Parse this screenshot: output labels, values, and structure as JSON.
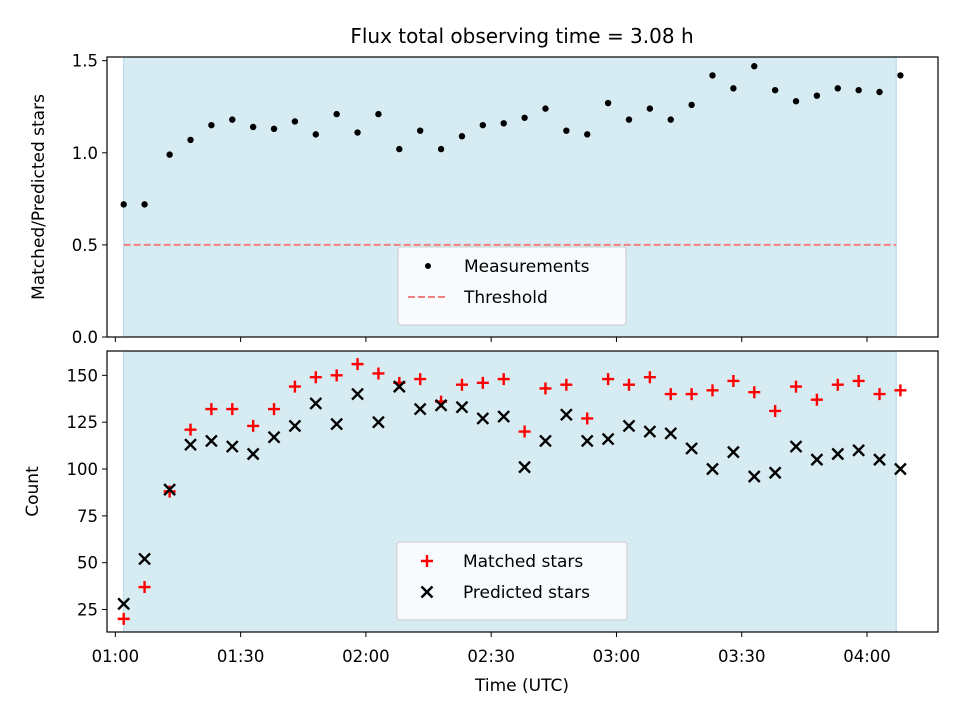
{
  "chart_data": [
    {
      "type": "scatter",
      "title": "Flux total observing time = 3.08 h",
      "xlabel": "",
      "ylabel": "Matched/Predicted stars",
      "xlim": [
        "00:58",
        "04:17"
      ],
      "ylim": [
        0,
        1.52
      ],
      "yticks": [
        "0.0",
        "0.5",
        "1.0",
        "1.5"
      ],
      "shaded_interval": [
        "01:02",
        "04:07"
      ],
      "shade_color": "#add8e6",
      "legend_position": "lower center",
      "series": [
        {
          "name": "Measurements",
          "marker": "dot",
          "color": "#000000",
          "x": [
            "01:02",
            "01:07",
            "01:13",
            "01:18",
            "01:23",
            "01:28",
            "01:33",
            "01:38",
            "01:43",
            "01:48",
            "01:53",
            "01:58",
            "02:03",
            "02:08",
            "02:13",
            "02:18",
            "02:23",
            "02:28",
            "02:33",
            "02:38",
            "02:43",
            "02:48",
            "02:53",
            "02:58",
            "03:03",
            "03:08",
            "03:13",
            "03:18",
            "03:23",
            "03:28",
            "03:33",
            "03:38",
            "03:43",
            "03:48",
            "03:53",
            "03:58",
            "04:03",
            "04:08"
          ],
          "y": [
            0.72,
            0.72,
            0.99,
            1.07,
            1.15,
            1.18,
            1.14,
            1.13,
            1.17,
            1.1,
            1.21,
            1.11,
            1.21,
            1.02,
            1.12,
            1.02,
            1.09,
            1.15,
            1.16,
            1.19,
            1.24,
            1.12,
            1.1,
            1.27,
            1.18,
            1.24,
            1.18,
            1.26,
            1.42,
            1.35,
            1.47,
            1.34,
            1.28,
            1.31,
            1.35,
            1.34,
            1.33,
            1.42
          ]
        }
      ],
      "threshold": {
        "name": "Threshold",
        "value": 0.5,
        "color": "#f08080",
        "style": "dashed"
      }
    },
    {
      "type": "scatter",
      "title": "",
      "xlabel": "Time (UTC)",
      "ylabel": "Count",
      "xlim": [
        "00:58",
        "04:17"
      ],
      "ylim": [
        13,
        163
      ],
      "yticks": [
        "25",
        "50",
        "75",
        "100",
        "125",
        "150"
      ],
      "xticks": [
        "01:00",
        "01:30",
        "02:00",
        "02:30",
        "03:00",
        "03:30",
        "04:00"
      ],
      "shaded_interval": [
        "01:02",
        "04:07"
      ],
      "shade_color": "#add8e6",
      "legend_position": "lower center",
      "series": [
        {
          "name": "Matched stars",
          "marker": "plus",
          "color": "#ff0000",
          "x": [
            "01:02",
            "01:07",
            "01:13",
            "01:18",
            "01:23",
            "01:28",
            "01:33",
            "01:38",
            "01:43",
            "01:48",
            "01:53",
            "01:58",
            "02:03",
            "02:08",
            "02:13",
            "02:18",
            "02:23",
            "02:28",
            "02:33",
            "02:38",
            "02:43",
            "02:48",
            "02:53",
            "02:58",
            "03:03",
            "03:08",
            "03:13",
            "03:18",
            "03:23",
            "03:28",
            "03:33",
            "03:38",
            "03:43",
            "03:48",
            "03:53",
            "03:58",
            "04:03",
            "04:08"
          ],
          "y": [
            20,
            37,
            88,
            121,
            132,
            132,
            123,
            132,
            144,
            149,
            150,
            156,
            151,
            146,
            148,
            136,
            145,
            146,
            148,
            120,
            143,
            145,
            127,
            148,
            145,
            149,
            140,
            140,
            142,
            147,
            141,
            131,
            144,
            137,
            145,
            147,
            140,
            142
          ]
        },
        {
          "name": "Predicted stars",
          "marker": "x",
          "color": "#000000",
          "x": [
            "01:02",
            "01:07",
            "01:13",
            "01:18",
            "01:23",
            "01:28",
            "01:33",
            "01:38",
            "01:43",
            "01:48",
            "01:53",
            "01:58",
            "02:03",
            "02:08",
            "02:13",
            "02:18",
            "02:23",
            "02:28",
            "02:33",
            "02:38",
            "02:43",
            "02:48",
            "02:53",
            "02:58",
            "03:03",
            "03:08",
            "03:13",
            "03:18",
            "03:23",
            "03:28",
            "03:33",
            "03:38",
            "03:43",
            "03:48",
            "03:53",
            "03:58",
            "04:03",
            "04:08"
          ],
          "y": [
            28,
            52,
            89,
            113,
            115,
            112,
            108,
            117,
            123,
            135,
            124,
            140,
            125,
            144,
            132,
            134,
            133,
            127,
            128,
            101,
            115,
            129,
            115,
            116,
            123,
            120,
            119,
            111,
            100,
            109,
            96,
            98,
            112,
            105,
            108,
            110,
            105,
            100
          ]
        }
      ]
    }
  ]
}
